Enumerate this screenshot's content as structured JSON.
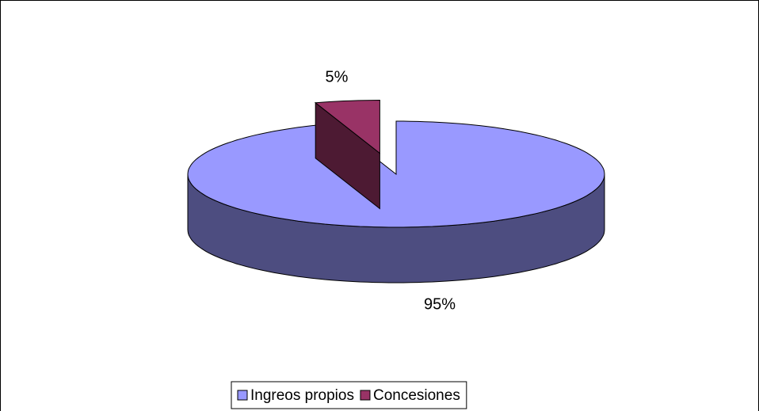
{
  "chart_data": {
    "type": "pie3d",
    "categories": [
      "Ingreos propios",
      "Concesiones"
    ],
    "values": [
      95,
      5
    ],
    "value_labels": [
      "95%",
      "5%"
    ],
    "colors": [
      "#9999ff",
      "#993366"
    ],
    "legend": "bottom"
  }
}
